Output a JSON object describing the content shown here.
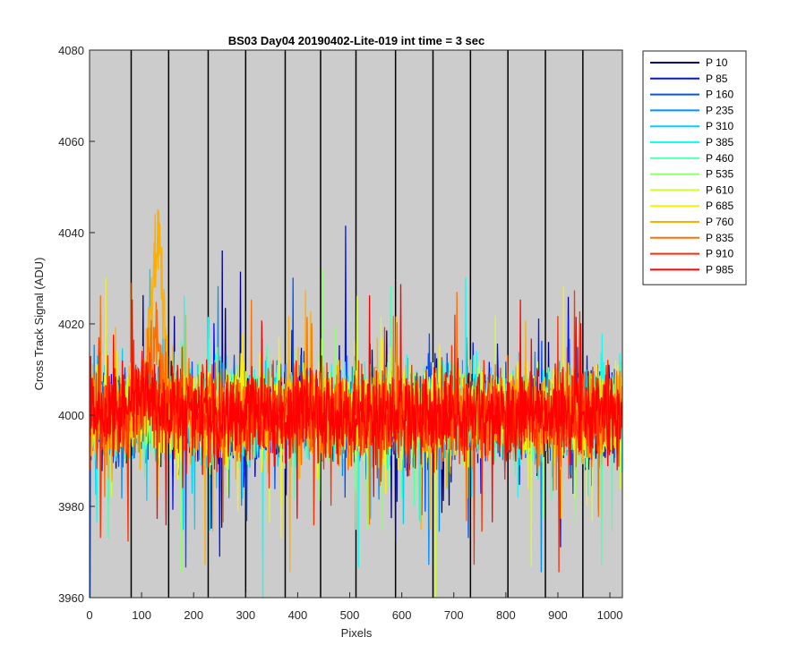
{
  "chart_data": {
    "type": "line",
    "title": "BS03 Day04 20190402-Lite-019 int time = 3 sec",
    "xlabel": "Pixels",
    "ylabel": "Cross Track Signal (ADU)",
    "xlim": [
      0,
      1024
    ],
    "ylim": [
      3960,
      4080
    ],
    "xticks": [
      0,
      100,
      200,
      300,
      400,
      500,
      600,
      700,
      800,
      900,
      1000
    ],
    "yticks": [
      3960,
      3980,
      4000,
      4020,
      4040,
      4060,
      4080
    ],
    "plot_background": "#cccccc",
    "grid": false,
    "legend_position": "outside-right",
    "vertical_lines": [
      80,
      152,
      228,
      300,
      376,
      444,
      512,
      588,
      660,
      732,
      804,
      876,
      948
    ],
    "series": [
      {
        "name": "P 10",
        "color": "#00008f",
        "mean": 4000,
        "noise": 8.5
      },
      {
        "name": "P 85",
        "color": "#0010ff",
        "mean": 4000,
        "noise": 8.5
      },
      {
        "name": "P 160",
        "color": "#0050ff",
        "mean": 4000,
        "noise": 8.5
      },
      {
        "name": "P 235",
        "color": "#0090ff",
        "mean": 4000,
        "noise": 8.5
      },
      {
        "name": "P 310",
        "color": "#00d0ff",
        "mean": 4000,
        "noise": 8.5
      },
      {
        "name": "P 385",
        "color": "#10ffef",
        "mean": 4000,
        "noise": 8.5
      },
      {
        "name": "P 460",
        "color": "#50ffaf",
        "mean": 4000,
        "noise": 8.5
      },
      {
        "name": "P 535",
        "color": "#90ff6f",
        "mean": 4000,
        "noise": 8.5
      },
      {
        "name": "P 610",
        "color": "#d0ff2f",
        "mean": 4000,
        "noise": 8.5
      },
      {
        "name": "P 685",
        "color": "#ffef00",
        "mean": 4000,
        "noise": 8.5
      },
      {
        "name": "P 760",
        "color": "#ffaf00",
        "mean": 4000,
        "noise": 8.5,
        "peak": {
          "center": 130,
          "width": 18,
          "height": 50
        }
      },
      {
        "name": "P 835",
        "color": "#ff6f00",
        "mean": 4000,
        "noise": 8.5,
        "peak": {
          "center": 125,
          "width": 22,
          "height": 18
        }
      },
      {
        "name": "P 910",
        "color": "#ff2f00",
        "mean": 4000,
        "noise": 8.5,
        "peak": {
          "center": 115,
          "width": 25,
          "height": 6
        }
      },
      {
        "name": "P 985",
        "color": "#ff0000",
        "mean": 4000,
        "noise": 8.5,
        "peak": {
          "center": 100,
          "width": 40,
          "height": 5
        }
      }
    ]
  }
}
